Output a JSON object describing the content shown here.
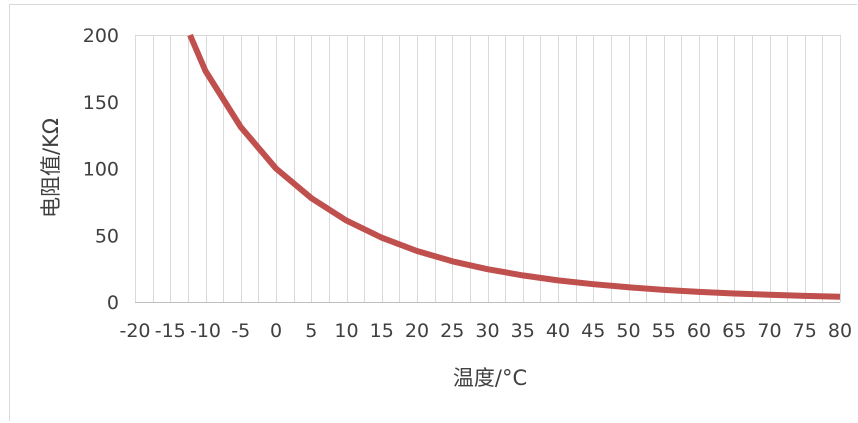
{
  "chart_data": {
    "type": "line",
    "title": "",
    "xlabel": "温度/°C",
    "ylabel": "电阻值/KΩ",
    "xlim": [
      -20,
      80
    ],
    "ylim": [
      0,
      200
    ],
    "x_ticks": [
      -20,
      -15,
      -10,
      -5,
      0,
      5,
      10,
      15,
      20,
      25,
      30,
      35,
      40,
      45,
      50,
      55,
      60,
      65,
      70,
      75,
      80
    ],
    "y_ticks": [
      0,
      50,
      100,
      150,
      200
    ],
    "x_tick_labels": [
      "-20",
      "-15",
      "-10",
      "-5",
      "0",
      "5",
      "10",
      "15",
      "20",
      "25",
      "30",
      "35",
      "40",
      "45",
      "50",
      "55",
      "60",
      "65",
      "70",
      "75",
      "80"
    ],
    "y_tick_labels": [
      "0",
      "50",
      "100",
      "150",
      "200"
    ],
    "grid": "vertical",
    "legend": "none",
    "series": [
      {
        "color": "#c0504d",
        "x": [
          -12.2,
          -10,
          -5,
          0,
          5,
          10,
          15,
          20,
          25,
          30,
          35,
          40,
          45,
          50,
          55,
          60,
          65,
          70,
          75,
          80
        ],
        "y": [
          200,
          173,
          131,
          100,
          77.8,
          61,
          48.2,
          38.2,
          30.5,
          24.6,
          19.9,
          16.2,
          13.3,
          11,
          9.1,
          7.6,
          6.4,
          5.4,
          4.6,
          3.9
        ]
      }
    ]
  }
}
